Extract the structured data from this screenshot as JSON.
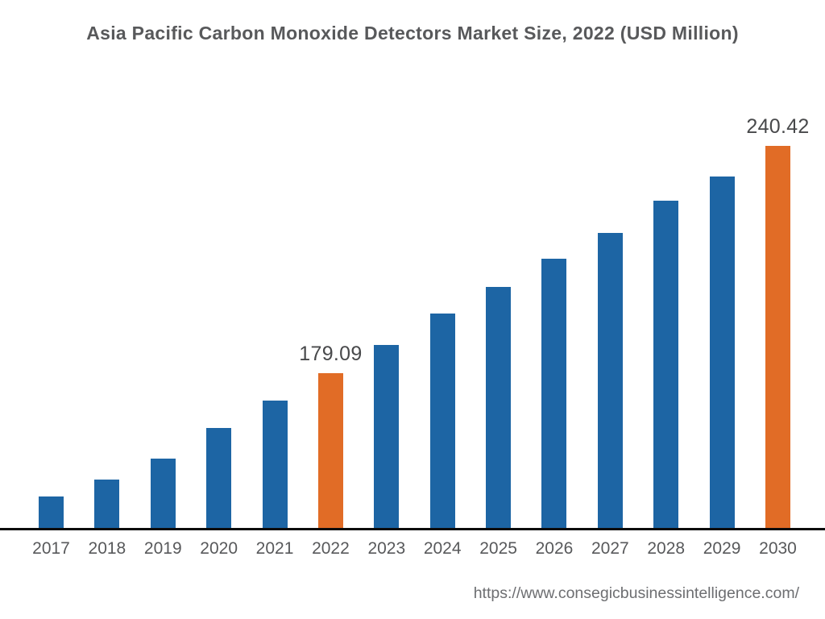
{
  "chart_data": {
    "type": "bar",
    "title": "Asia Pacific Carbon Monoxide Detectors Market Size, 2022 (USD Million)",
    "xlabel": "",
    "ylabel": "",
    "categories": [
      "2017",
      "2018",
      "2019",
      "2020",
      "2021",
      "2022",
      "2023",
      "2024",
      "2025",
      "2026",
      "2027",
      "2028",
      "2029",
      "2030"
    ],
    "values": [
      145.8,
      150.3,
      156.0,
      164.2,
      171.7,
      179.09,
      186.8,
      195.1,
      202.4,
      210.0,
      217.0,
      225.7,
      232.2,
      240.42
    ],
    "data_labels": {
      "2022": "179.09",
      "2030": "240.42"
    },
    "highlighted_categories": [
      "2022",
      "2030"
    ],
    "bar_color": "#1d65a4",
    "highlight_color": "#e16c26",
    "ylim": [
      137.1,
      250.0
    ],
    "grid": false,
    "legend": false,
    "axis_line_color": "#0b0b0b"
  },
  "footer": {
    "url_text": "https://www.consegicbusinessintelligence.com/"
  },
  "colors": {
    "background": "#ffffff",
    "title_text": "#58595b",
    "tick_text": "#58595b",
    "data_label_text": "#48494b",
    "footer_text": "#6d6e71"
  }
}
